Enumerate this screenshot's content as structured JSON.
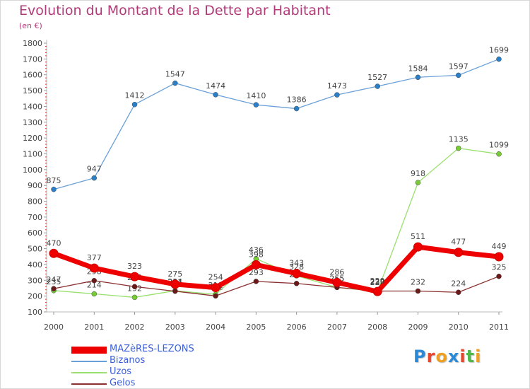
{
  "title": "Evolution du Montant de la Dette par Habitant",
  "unit": "(en €)",
  "logo": {
    "letters": [
      {
        "ch": "P",
        "color": "#2a8ad8"
      },
      {
        "ch": "r",
        "color": "#e8452c"
      },
      {
        "ch": "o",
        "color": "#f0a020"
      },
      {
        "ch": "x",
        "color": "#2a8ad8"
      },
      {
        "ch": "i",
        "color": "#e8452c"
      },
      {
        "ch": "t",
        "color": "#4fb848"
      },
      {
        "ch": "i",
        "color": "#f0a020"
      }
    ]
  },
  "chart_data": {
    "type": "line",
    "title": "Evolution du Montant de la Dette par Habitant",
    "ylabel": "(en €)",
    "xlabel": "",
    "ylim": [
      100,
      1800
    ],
    "yticks": [
      100,
      200,
      300,
      400,
      500,
      600,
      700,
      800,
      900,
      1000,
      1100,
      1200,
      1300,
      1400,
      1500,
      1600,
      1700,
      1800
    ],
    "x": [
      "2000",
      "2001",
      "2002",
      "2003",
      "2004",
      "2005",
      "2006",
      "2007",
      "2008",
      "2009",
      "2010",
      "2011"
    ],
    "grid": false,
    "legend_position": "bottom-left",
    "series": [
      {
        "name": "MAZèRES-LEZONS",
        "color": "#ee0000",
        "marker": "#ee0000",
        "width": 7,
        "values": [
          470,
          377,
          323,
          275,
          254,
          398,
          343,
          286,
          229,
          511,
          477,
          449
        ],
        "labels": [
          "470",
          "377",
          "323",
          "275",
          "254",
          "398",
          "343",
          "286",
          "229",
          "511",
          "477",
          "449"
        ]
      },
      {
        "name": "Bizanos",
        "color": "#6aa0d8",
        "marker": "#2a80c8",
        "width": 1.3,
        "values": [
          875,
          947,
          1412,
          1547,
          1474,
          1410,
          1386,
          1473,
          1527,
          1584,
          1597,
          1699
        ],
        "labels": [
          "875",
          "947",
          "1412",
          "1547",
          "1474",
          "1410",
          "1386",
          "1473",
          "1527",
          "1584",
          "1597",
          "1699"
        ]
      },
      {
        "name": "Uzos",
        "color": "#9ae070",
        "marker": "#77cc33",
        "width": 1.3,
        "values": [
          235,
          214,
          192,
          234,
          211,
          436,
          328,
          255,
          229,
          918,
          1135,
          1099
        ],
        "labels": [
          "235",
          "214",
          "192",
          "234",
          "211",
          "436",
          "328",
          "255",
          "229",
          "918",
          "1135",
          "1099"
        ]
      },
      {
        "name": "Gelos",
        "color": "#8a3030",
        "marker": "#6a1818",
        "width": 1.3,
        "values": [
          247,
          298,
          260,
          231,
          201,
          293,
          280,
          255,
          232,
          232,
          224,
          325
        ],
        "labels": [
          "247",
          "298",
          "260",
          "231",
          "201",
          "293",
          "280",
          "255",
          "232",
          "232",
          "224",
          "325"
        ]
      }
    ]
  }
}
